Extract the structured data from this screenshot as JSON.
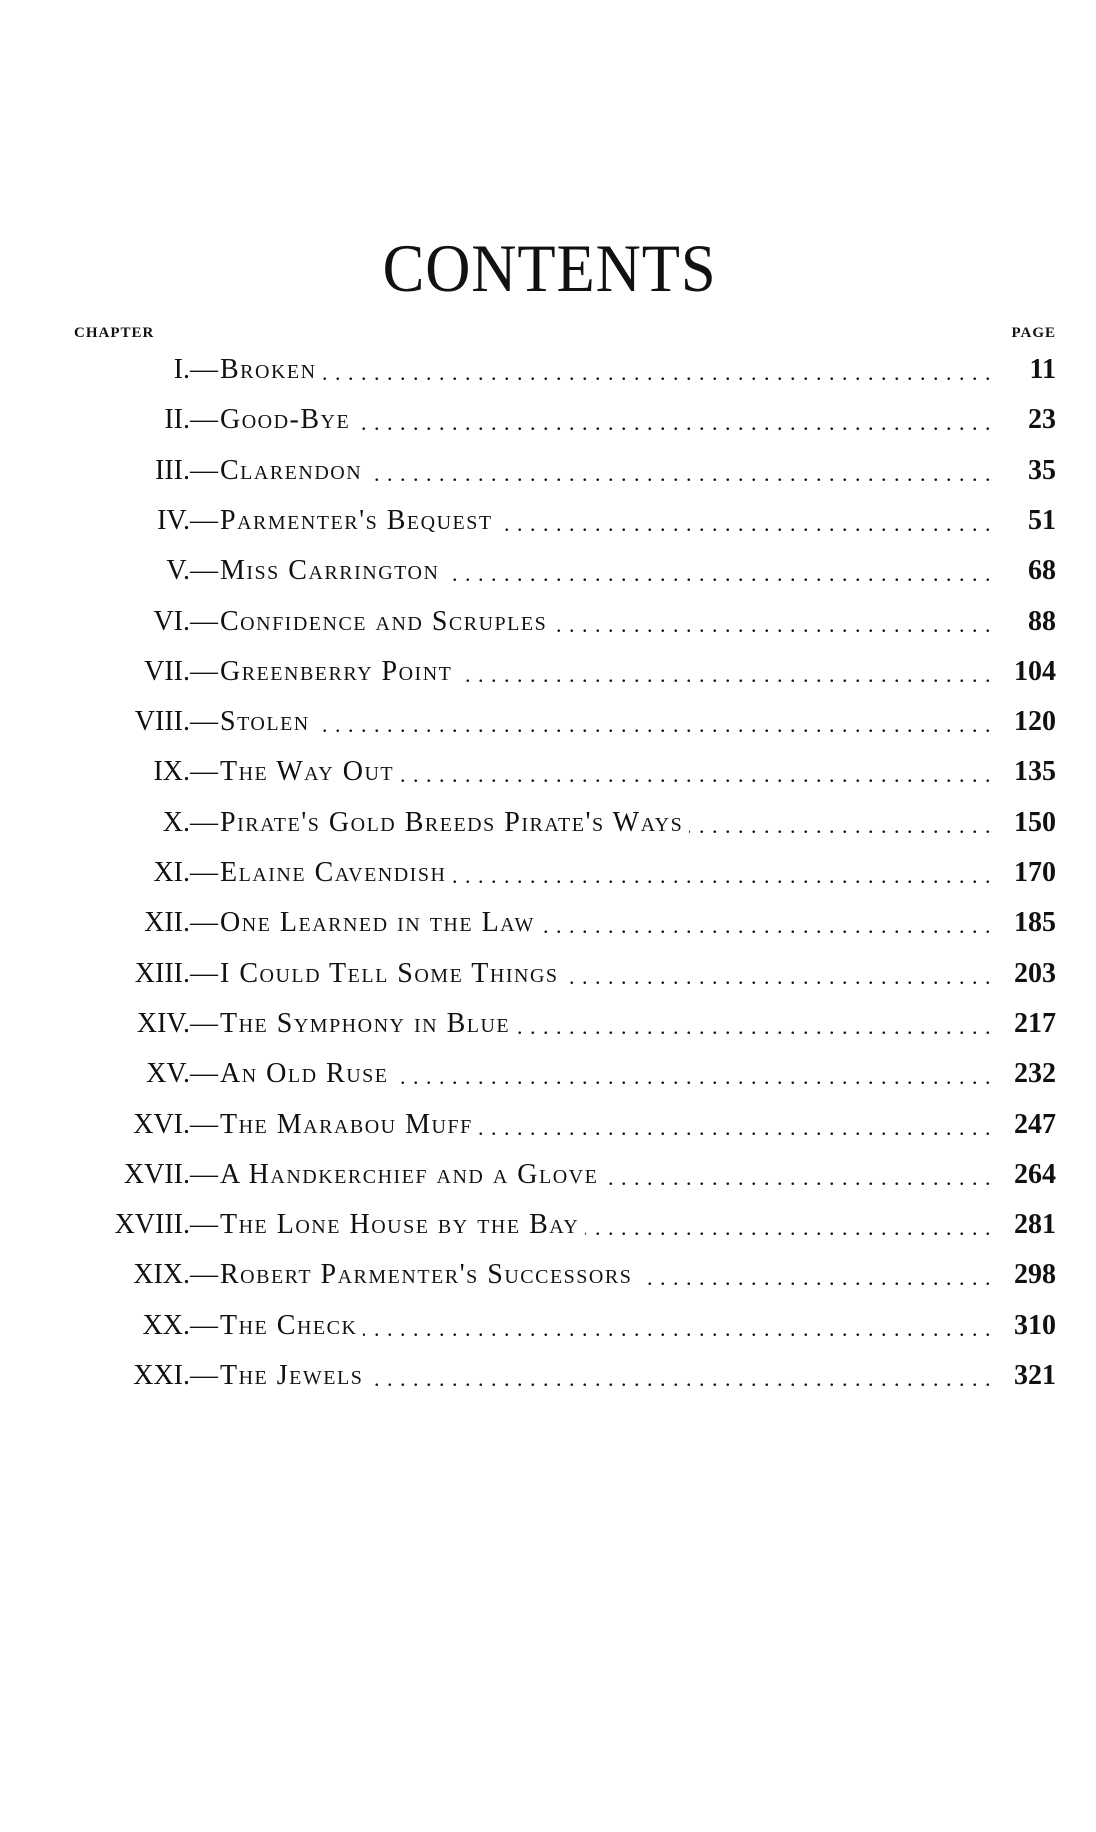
{
  "title": "CONTENTS",
  "column_headers": {
    "chapter": "CHAPTER",
    "page": "PAGE"
  },
  "chapters": [
    {
      "number": "I.—",
      "title": "Broken",
      "page": "11"
    },
    {
      "number": "II.—",
      "title": "Good-Bye",
      "page": "23"
    },
    {
      "number": "III.—",
      "title": "Clarendon",
      "page": "35"
    },
    {
      "number": "IV.—",
      "title": "Parmenter's Bequest",
      "page": "51"
    },
    {
      "number": "V.—",
      "title": "Miss Carrington",
      "page": "68"
    },
    {
      "number": "VI.—",
      "title": "Confidence and Scruples",
      "page": "88"
    },
    {
      "number": "VII.—",
      "title": "Greenberry Point",
      "page": "104"
    },
    {
      "number": "VIII.—",
      "title": "Stolen",
      "page": "120"
    },
    {
      "number": "IX.—",
      "title": "The Way Out",
      "page": "135"
    },
    {
      "number": "X.—",
      "title": "Pirate's Gold Breeds Pirate's Ways",
      "page": "150"
    },
    {
      "number": "XI.—",
      "title": "Elaine Cavendish",
      "page": "170"
    },
    {
      "number": "XII.—",
      "title": "One Learned in the Law",
      "page": "185"
    },
    {
      "number": "XIII.—",
      "title": "I Could Tell Some Things",
      "page": "203"
    },
    {
      "number": "XIV.—",
      "title": "The Symphony in Blue",
      "page": "217"
    },
    {
      "number": "XV.—",
      "title": "An Old Ruse",
      "page": "232"
    },
    {
      "number": "XVI.—",
      "title": "The Marabou Muff",
      "page": "247"
    },
    {
      "number": "XVII.—",
      "title": "A Handkerchief and a Glove",
      "page": "264"
    },
    {
      "number": "XVIII.—",
      "title": "The Lone House by the Bay",
      "page": "281"
    },
    {
      "number": "XIX.—",
      "title": "Robert Parmenter's Successors",
      "page": "298"
    },
    {
      "number": "XX.—",
      "title": "The Check",
      "page": "310"
    },
    {
      "number": "XXI.—",
      "title": "The Jewels",
      "page": "321"
    }
  ]
}
